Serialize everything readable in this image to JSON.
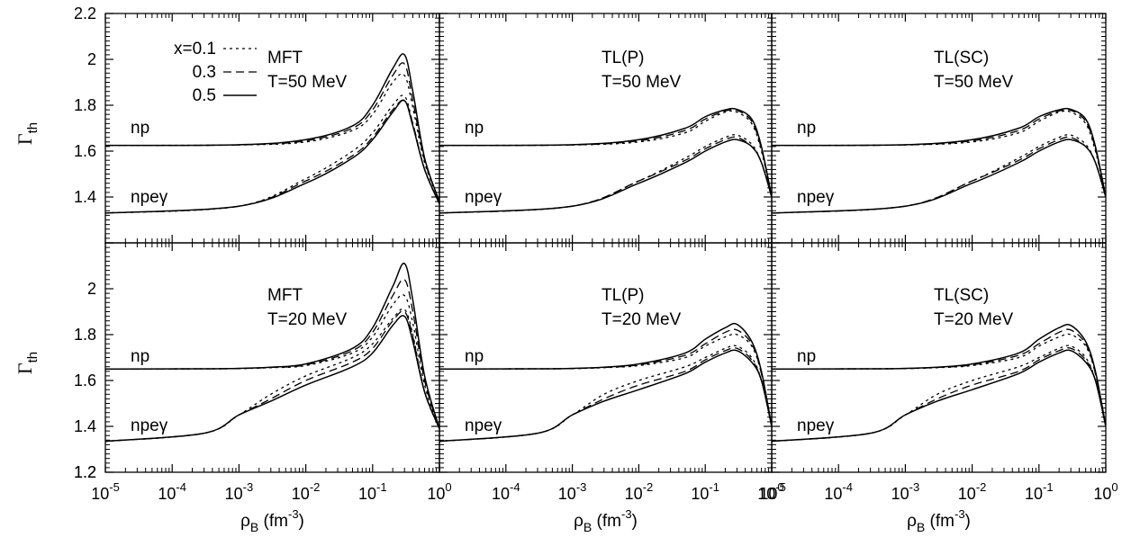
{
  "figure": {
    "y_axis_label": "Γth",
    "x_axis_label": "ρB (fm-3)",
    "legend": {
      "entries": [
        {
          "label": "x=0.1",
          "style": "dotted"
        },
        {
          "label": "0.3",
          "style": "dashed"
        },
        {
          "label": "0.5",
          "style": "solid"
        }
      ]
    },
    "curve_labels": {
      "np": "np",
      "npeg": "npeγ"
    }
  },
  "chart_data": [
    {
      "type": "line",
      "panel": "top-left",
      "model": "MFT",
      "temperature": "T=50 MeV",
      "xscale": "log",
      "xlim": [
        1e-05,
        1
      ],
      "ylim": [
        1.2,
        2.2
      ],
      "grid": false,
      "x": [
        1e-05,
        0.001,
        0.01,
        0.05,
        0.1,
        0.2,
        0.3,
        0.4,
        0.6,
        1
      ],
      "series": [
        {
          "name": "np x=0.1",
          "values": [
            1.625,
            1.627,
            1.64,
            1.69,
            1.76,
            1.9,
            1.93,
            1.79,
            1.55,
            1.38
          ]
        },
        {
          "name": "np x=0.3",
          "values": [
            1.625,
            1.627,
            1.645,
            1.7,
            1.78,
            1.93,
            1.98,
            1.82,
            1.56,
            1.38
          ]
        },
        {
          "name": "np x=0.5",
          "values": [
            1.625,
            1.628,
            1.65,
            1.71,
            1.8,
            1.96,
            2.02,
            1.86,
            1.57,
            1.38
          ]
        },
        {
          "name": "npeγ x=0.1",
          "values": [
            1.33,
            1.36,
            1.48,
            1.6,
            1.68,
            1.8,
            1.84,
            1.72,
            1.52,
            1.37
          ]
        },
        {
          "name": "npeγ x=0.3",
          "values": [
            1.33,
            1.36,
            1.47,
            1.58,
            1.66,
            1.78,
            1.82,
            1.72,
            1.52,
            1.37
          ]
        },
        {
          "name": "npeγ x=0.5",
          "values": [
            1.33,
            1.36,
            1.46,
            1.57,
            1.65,
            1.77,
            1.82,
            1.71,
            1.52,
            1.37
          ]
        }
      ]
    },
    {
      "type": "line",
      "panel": "top-middle",
      "model": "TL(P)",
      "temperature": "T=50 MeV",
      "xscale": "log",
      "xlim": [
        1e-05,
        1
      ],
      "ylim": [
        1.2,
        2.2
      ],
      "grid": false,
      "x": [
        1e-05,
        0.001,
        0.01,
        0.05,
        0.1,
        0.2,
        0.3,
        0.5,
        0.7,
        1
      ],
      "series": [
        {
          "name": "np x=0.1",
          "values": [
            1.625,
            1.627,
            1.64,
            1.68,
            1.73,
            1.77,
            1.77,
            1.72,
            1.6,
            1.4
          ]
        },
        {
          "name": "np x=0.3",
          "values": [
            1.625,
            1.627,
            1.645,
            1.69,
            1.74,
            1.775,
            1.778,
            1.73,
            1.61,
            1.4
          ]
        },
        {
          "name": "np x=0.5",
          "values": [
            1.625,
            1.628,
            1.65,
            1.7,
            1.75,
            1.78,
            1.782,
            1.74,
            1.62,
            1.4
          ]
        },
        {
          "name": "npeγ x=0.1",
          "values": [
            1.33,
            1.36,
            1.47,
            1.57,
            1.62,
            1.66,
            1.67,
            1.63,
            1.55,
            1.4
          ]
        },
        {
          "name": "npeγ x=0.3",
          "values": [
            1.33,
            1.36,
            1.47,
            1.56,
            1.61,
            1.65,
            1.66,
            1.62,
            1.55,
            1.4
          ]
        },
        {
          "name": "npeγ x=0.5",
          "values": [
            1.33,
            1.36,
            1.46,
            1.55,
            1.6,
            1.64,
            1.65,
            1.62,
            1.55,
            1.4
          ]
        }
      ]
    },
    {
      "type": "line",
      "panel": "top-right",
      "model": "TL(SC)",
      "temperature": "T=50 MeV",
      "xscale": "log",
      "xlim": [
        1e-05,
        1
      ],
      "ylim": [
        1.2,
        2.2
      ],
      "grid": false,
      "x": [
        1e-05,
        0.001,
        0.01,
        0.05,
        0.1,
        0.2,
        0.3,
        0.5,
        0.7,
        1
      ],
      "series": [
        {
          "name": "np x=0.1",
          "values": [
            1.625,
            1.627,
            1.64,
            1.68,
            1.73,
            1.77,
            1.77,
            1.72,
            1.6,
            1.4
          ]
        },
        {
          "name": "np x=0.3",
          "values": [
            1.625,
            1.627,
            1.645,
            1.69,
            1.74,
            1.775,
            1.778,
            1.73,
            1.61,
            1.4
          ]
        },
        {
          "name": "np x=0.5",
          "values": [
            1.625,
            1.628,
            1.65,
            1.7,
            1.75,
            1.78,
            1.782,
            1.74,
            1.62,
            1.4
          ]
        },
        {
          "name": "npeγ x=0.1",
          "values": [
            1.33,
            1.36,
            1.47,
            1.57,
            1.62,
            1.66,
            1.67,
            1.63,
            1.55,
            1.4
          ]
        },
        {
          "name": "npeγ x=0.3",
          "values": [
            1.33,
            1.36,
            1.47,
            1.56,
            1.61,
            1.65,
            1.66,
            1.62,
            1.55,
            1.4
          ]
        },
        {
          "name": "npeγ x=0.5",
          "values": [
            1.33,
            1.36,
            1.46,
            1.55,
            1.6,
            1.64,
            1.65,
            1.62,
            1.55,
            1.4
          ]
        }
      ]
    },
    {
      "type": "line",
      "panel": "bottom-left",
      "model": "MFT",
      "temperature": "T=20 MeV",
      "xscale": "log",
      "xlim": [
        1e-05,
        1
      ],
      "ylim": [
        1.2,
        2.2
      ],
      "grid": false,
      "x": [
        1e-05,
        0.0003,
        0.001,
        0.003,
        0.01,
        0.05,
        0.1,
        0.2,
        0.3,
        0.4,
        0.6,
        1
      ],
      "series": [
        {
          "name": "np x=0.1",
          "values": [
            1.65,
            1.651,
            1.652,
            1.656,
            1.665,
            1.72,
            1.79,
            1.93,
            1.97,
            1.85,
            1.58,
            1.39
          ]
        },
        {
          "name": "np x=0.3",
          "values": [
            1.65,
            1.651,
            1.652,
            1.657,
            1.668,
            1.73,
            1.81,
            1.97,
            2.04,
            1.9,
            1.6,
            1.39
          ]
        },
        {
          "name": "np x=0.5",
          "values": [
            1.65,
            1.651,
            1.653,
            1.658,
            1.672,
            1.74,
            1.83,
            2.01,
            2.11,
            1.95,
            1.62,
            1.39
          ]
        },
        {
          "name": "npeγ x=0.1",
          "values": [
            1.335,
            1.37,
            1.45,
            1.54,
            1.62,
            1.7,
            1.76,
            1.87,
            1.91,
            1.8,
            1.55,
            1.39
          ]
        },
        {
          "name": "npeγ x=0.3",
          "values": [
            1.335,
            1.37,
            1.45,
            1.52,
            1.6,
            1.68,
            1.74,
            1.86,
            1.9,
            1.79,
            1.55,
            1.39
          ]
        },
        {
          "name": "npeγ x=0.5",
          "values": [
            1.335,
            1.37,
            1.45,
            1.51,
            1.58,
            1.66,
            1.72,
            1.84,
            1.88,
            1.77,
            1.55,
            1.39
          ]
        }
      ]
    },
    {
      "type": "line",
      "panel": "bottom-middle",
      "model": "TL(P)",
      "temperature": "T=20 MeV",
      "xscale": "log",
      "xlim": [
        1e-05,
        1
      ],
      "ylim": [
        1.2,
        2.2
      ],
      "grid": false,
      "x": [
        1e-05,
        0.0003,
        0.001,
        0.003,
        0.01,
        0.05,
        0.1,
        0.2,
        0.3,
        0.5,
        0.7,
        1
      ],
      "series": [
        {
          "name": "np x=0.1",
          "values": [
            1.65,
            1.651,
            1.652,
            1.656,
            1.665,
            1.7,
            1.75,
            1.79,
            1.8,
            1.75,
            1.63,
            1.4
          ]
        },
        {
          "name": "np x=0.3",
          "values": [
            1.65,
            1.651,
            1.652,
            1.657,
            1.668,
            1.71,
            1.76,
            1.81,
            1.82,
            1.76,
            1.63,
            1.4
          ]
        },
        {
          "name": "np x=0.5",
          "values": [
            1.65,
            1.651,
            1.653,
            1.658,
            1.672,
            1.72,
            1.78,
            1.83,
            1.845,
            1.77,
            1.64,
            1.4
          ]
        },
        {
          "name": "npeγ x=0.1",
          "values": [
            1.335,
            1.37,
            1.45,
            1.54,
            1.6,
            1.66,
            1.7,
            1.74,
            1.75,
            1.7,
            1.6,
            1.4
          ]
        },
        {
          "name": "npeγ x=0.3",
          "values": [
            1.335,
            1.37,
            1.45,
            1.52,
            1.58,
            1.64,
            1.69,
            1.73,
            1.74,
            1.69,
            1.6,
            1.4
          ]
        },
        {
          "name": "npeγ x=0.5",
          "values": [
            1.335,
            1.37,
            1.45,
            1.51,
            1.56,
            1.63,
            1.68,
            1.72,
            1.73,
            1.68,
            1.6,
            1.4
          ]
        }
      ]
    },
    {
      "type": "line",
      "panel": "bottom-right",
      "model": "TL(SC)",
      "temperature": "T=20 MeV",
      "xscale": "log",
      "xlim": [
        1e-05,
        1
      ],
      "ylim": [
        1.2,
        2.2
      ],
      "grid": false,
      "x": [
        1e-05,
        0.0003,
        0.001,
        0.003,
        0.01,
        0.05,
        0.1,
        0.2,
        0.3,
        0.5,
        0.7,
        1
      ],
      "series": [
        {
          "name": "np x=0.1",
          "values": [
            1.65,
            1.651,
            1.652,
            1.656,
            1.665,
            1.7,
            1.75,
            1.79,
            1.8,
            1.75,
            1.63,
            1.4
          ]
        },
        {
          "name": "np x=0.3",
          "values": [
            1.65,
            1.651,
            1.652,
            1.657,
            1.668,
            1.71,
            1.76,
            1.81,
            1.82,
            1.76,
            1.63,
            1.4
          ]
        },
        {
          "name": "np x=0.5",
          "values": [
            1.65,
            1.651,
            1.653,
            1.658,
            1.672,
            1.72,
            1.78,
            1.83,
            1.84,
            1.77,
            1.64,
            1.4
          ]
        },
        {
          "name": "npeγ x=0.1",
          "values": [
            1.335,
            1.37,
            1.45,
            1.54,
            1.6,
            1.66,
            1.7,
            1.74,
            1.75,
            1.7,
            1.6,
            1.4
          ]
        },
        {
          "name": "npeγ x=0.3",
          "values": [
            1.335,
            1.37,
            1.45,
            1.52,
            1.58,
            1.64,
            1.69,
            1.73,
            1.74,
            1.69,
            1.6,
            1.4
          ]
        },
        {
          "name": "npeγ x=0.5",
          "values": [
            1.335,
            1.37,
            1.45,
            1.51,
            1.56,
            1.63,
            1.68,
            1.72,
            1.73,
            1.68,
            1.6,
            1.4
          ]
        }
      ]
    }
  ]
}
